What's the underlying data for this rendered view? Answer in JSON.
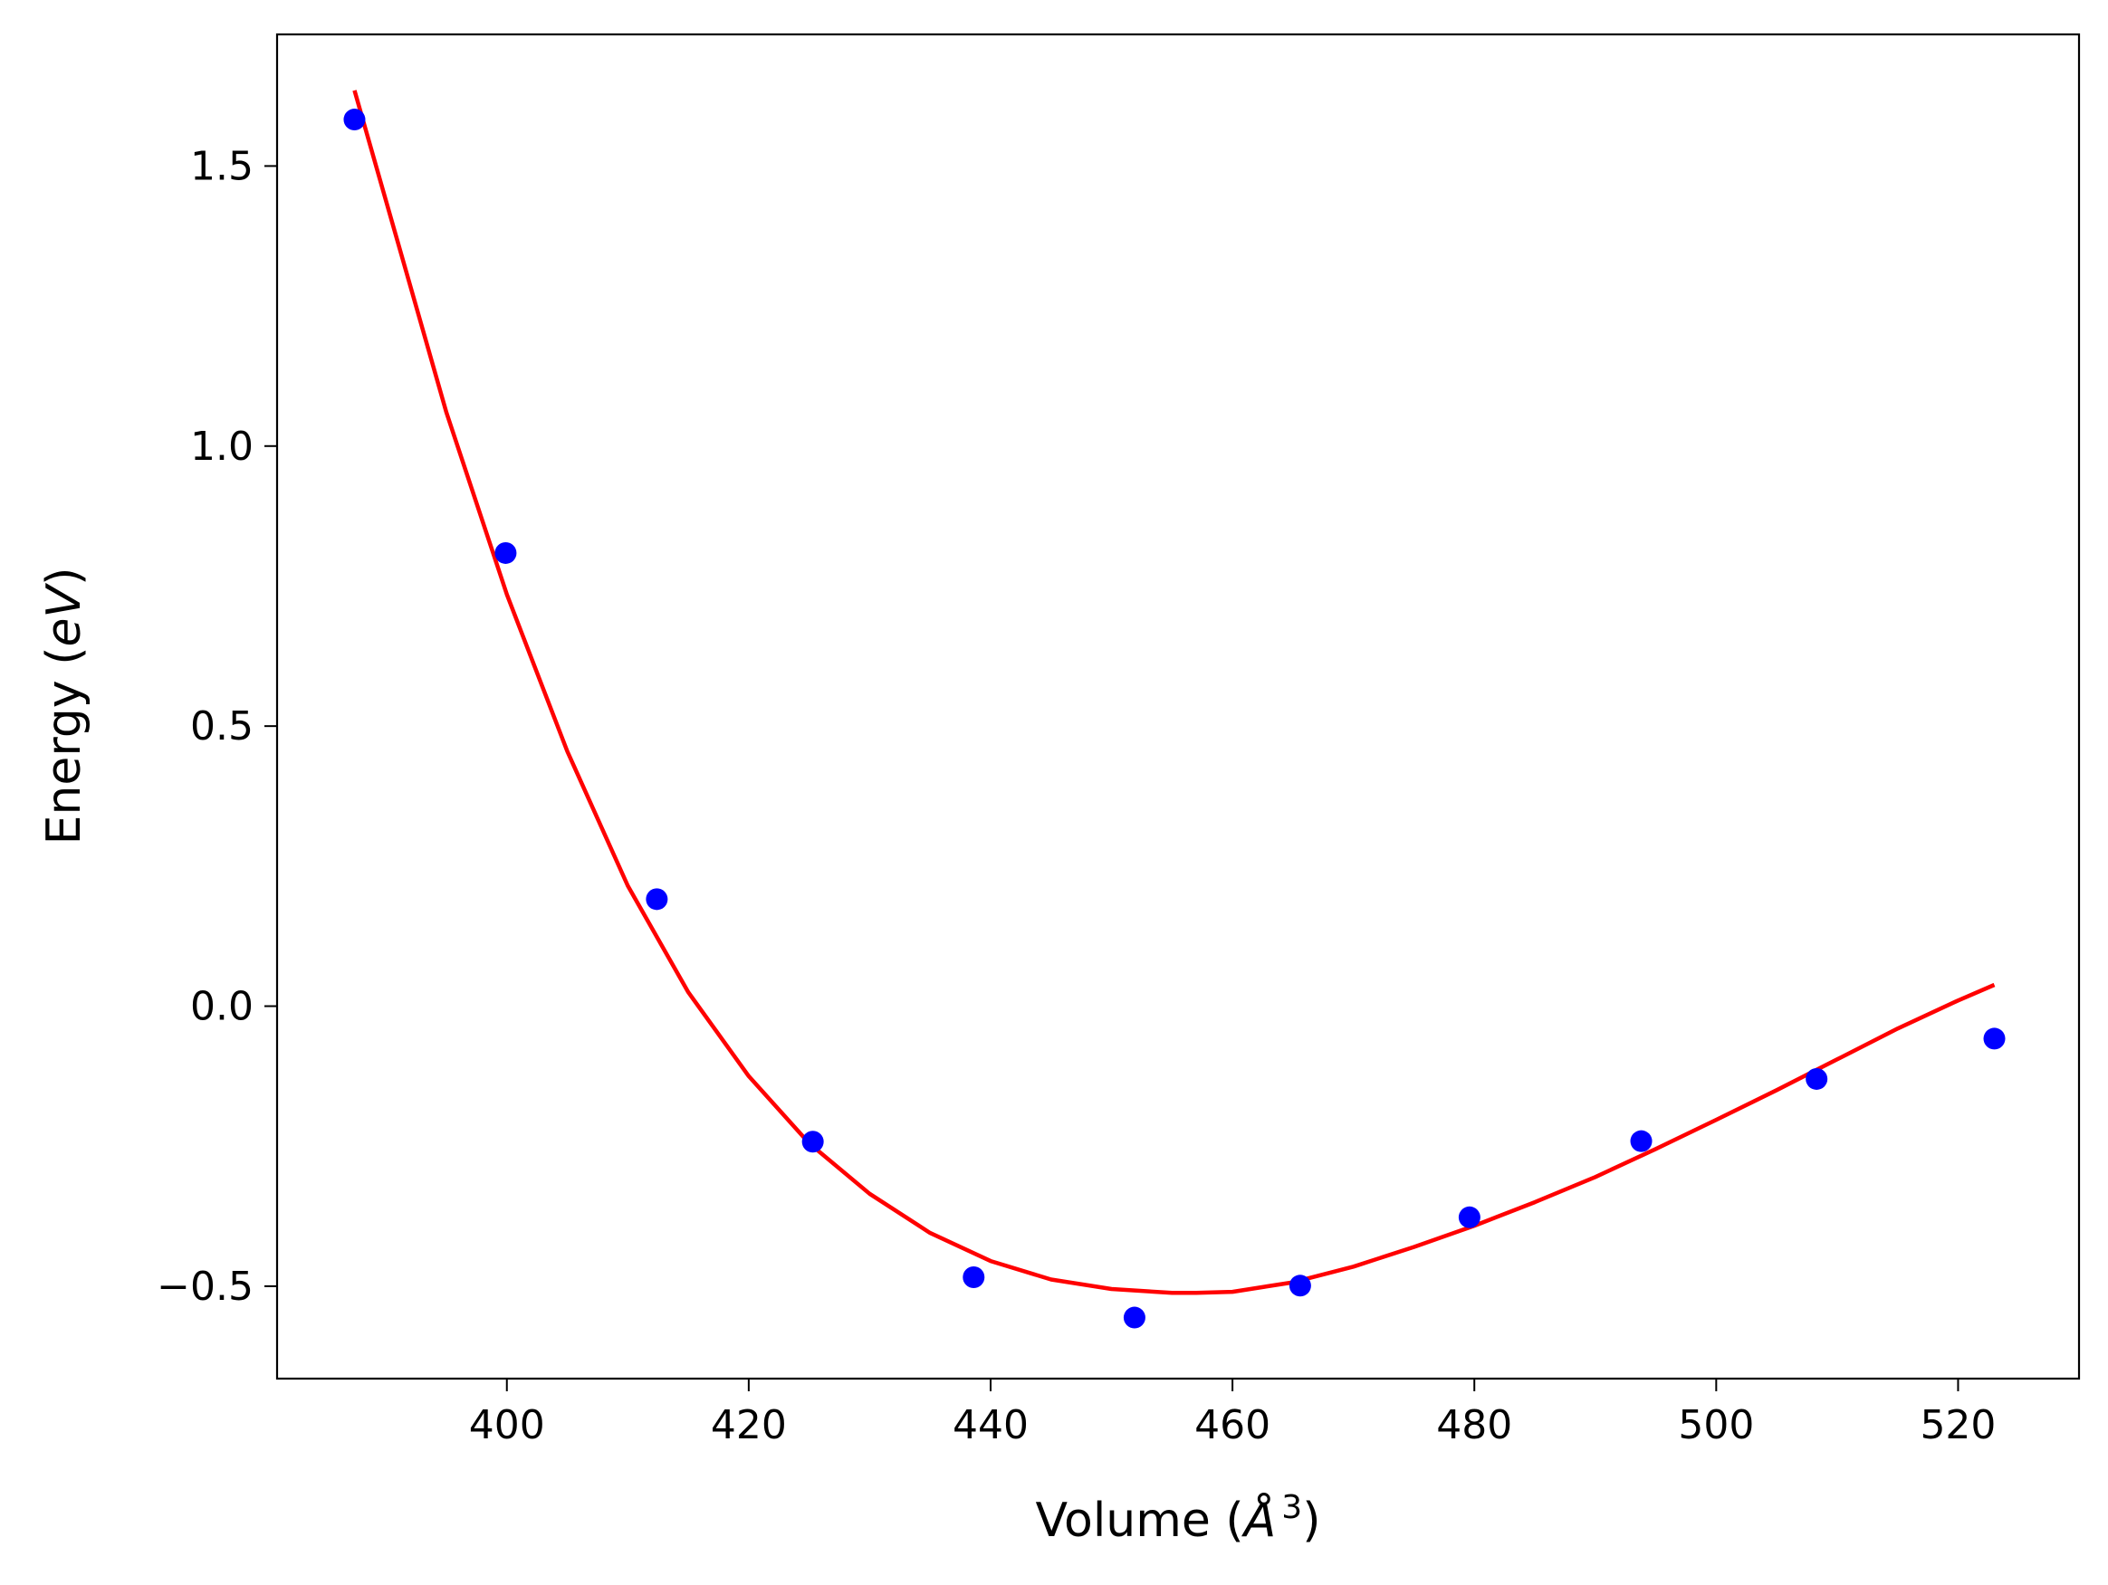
{
  "chart_data": {
    "type": "scatter",
    "title": "",
    "xlabel_parts": {
      "prefix": "Volume (",
      "symbol": "Å",
      "sup": "3",
      "suffix": ")"
    },
    "ylabel_parts": {
      "prefix": "Energy (",
      "italic": "eV",
      "suffix": ")"
    },
    "xlim": [
      381,
      530
    ],
    "ylim": [
      -0.665,
      1.735
    ],
    "x_ticks": [
      400,
      420,
      440,
      460,
      480,
      500,
      520
    ],
    "x_tick_labels": [
      "400",
      "420",
      "440",
      "460",
      "480",
      "500",
      "520"
    ],
    "y_ticks": [
      -0.5,
      0.0,
      0.5,
      1.0,
      1.5
    ],
    "y_tick_labels": [
      "−0.5",
      "0.0",
      "0.5",
      "1.0",
      "1.5"
    ],
    "grid": false,
    "legend": "none",
    "series": [
      {
        "kind": "points",
        "color": "#0000ff",
        "x": [
          387.4,
          399.9,
          412.4,
          425.3,
          438.6,
          451.9,
          465.6,
          479.6,
          493.8,
          508.3,
          523.0
        ],
        "y": [
          1.583,
          0.809,
          0.191,
          -0.242,
          -0.484,
          -0.556,
          -0.499,
          -0.377,
          -0.241,
          -0.13,
          -0.058
        ]
      },
      {
        "kind": "fit-line",
        "color": "#ff0000",
        "x": [
          387.4,
          395,
          400,
          405,
          410,
          415,
          420,
          425,
          430,
          435,
          440,
          445,
          450,
          455,
          457,
          460,
          465,
          470,
          475,
          480,
          485,
          490,
          495,
          500,
          505,
          510,
          515,
          520,
          523.0
        ],
        "y": [
          1.635,
          1.06,
          0.735,
          0.455,
          0.215,
          0.025,
          -0.125,
          -0.245,
          -0.335,
          -0.405,
          -0.455,
          -0.488,
          -0.505,
          -0.512,
          -0.512,
          -0.51,
          -0.493,
          -0.465,
          -0.43,
          -0.392,
          -0.35,
          -0.305,
          -0.255,
          -0.203,
          -0.15,
          -0.095,
          -0.04,
          0.01,
          0.038
        ]
      }
    ]
  }
}
